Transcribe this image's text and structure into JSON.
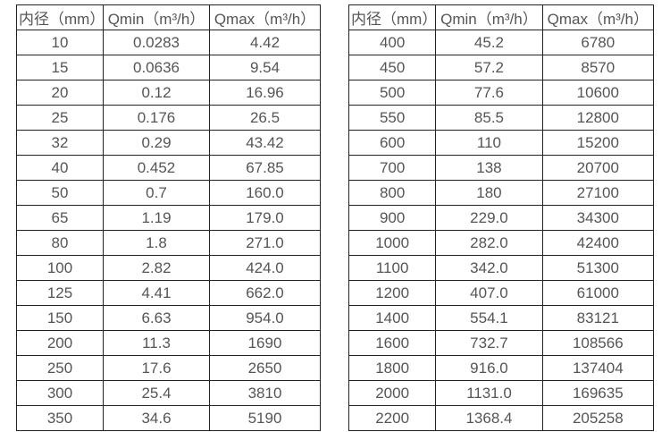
{
  "page": {
    "background_color": "#ffffff",
    "border_color": "#222222",
    "text_color": "#555555"
  },
  "tables": [
    {
      "id": "flow-spec-table-left",
      "columns": [
        "内径（mm）",
        "Qmin（m³/h）",
        "Qmax（m³/h）"
      ],
      "rows": [
        [
          "10",
          "0.0283",
          "4.42"
        ],
        [
          "15",
          "0.0636",
          "9.54"
        ],
        [
          "20",
          "0.12",
          "16.96"
        ],
        [
          "25",
          "0.176",
          "26.5"
        ],
        [
          "32",
          "0.29",
          "43.42"
        ],
        [
          "40",
          "0.452",
          "67.85"
        ],
        [
          "50",
          "0.7",
          "160.0"
        ],
        [
          "65",
          "1.19",
          "179.0"
        ],
        [
          "80",
          "1.8",
          "271.0"
        ],
        [
          "100",
          "2.82",
          "424.0"
        ],
        [
          "125",
          "4.41",
          "662.0"
        ],
        [
          "150",
          "6.63",
          "954.0"
        ],
        [
          "200",
          "11.3",
          "1690"
        ],
        [
          "250",
          "17.6",
          "2650"
        ],
        [
          "300",
          "25.4",
          "3810"
        ],
        [
          "350",
          "34.6",
          "5190"
        ]
      ]
    },
    {
      "id": "flow-spec-table-right",
      "columns": [
        "内径（mm）",
        "Qmin（m³/h）",
        "Qmax（m³/h）"
      ],
      "rows": [
        [
          "400",
          "45.2",
          "6780"
        ],
        [
          "450",
          "57.2",
          "8570"
        ],
        [
          "500",
          "77.6",
          "10600"
        ],
        [
          "550",
          "85.5",
          "12800"
        ],
        [
          "600",
          "110",
          "15200"
        ],
        [
          "700",
          "138",
          "20700"
        ],
        [
          "800",
          "180",
          "27100"
        ],
        [
          "900",
          "229.0",
          "34300"
        ],
        [
          "1000",
          "282.0",
          "42400"
        ],
        [
          "1100",
          "342.0",
          "51300"
        ],
        [
          "1200",
          "407.0",
          "61000"
        ],
        [
          "1400",
          "554.1",
          "83121"
        ],
        [
          "1600",
          "732.7",
          "108566"
        ],
        [
          "1800",
          "916.0",
          "137404"
        ],
        [
          "2000",
          "1131.0",
          "169635"
        ],
        [
          "2200",
          "1368.4",
          "205258"
        ]
      ]
    }
  ]
}
